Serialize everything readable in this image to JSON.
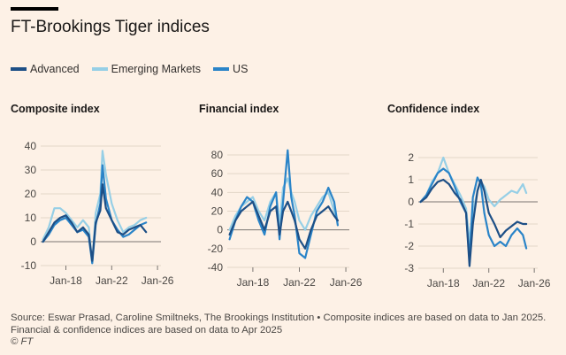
{
  "title": "FT-Brookings Tiger indices",
  "legend": [
    {
      "label": "Advanced",
      "color": "#1d4f86"
    },
    {
      "label": "Emerging Markets",
      "color": "#96cfe6"
    },
    {
      "label": "US",
      "color": "#2a84c8"
    }
  ],
  "source": "Source: Eswar Prasad, Caroline Smiltneks, The Brookings Institution • Composite indices are based on data to Jan 2025. Financial & confidence indices are based on data to Apr 2025",
  "credit": "© FT",
  "chart_data": [
    {
      "type": "line",
      "title": "Composite index",
      "xlim": [
        2015.8,
        2026.3
      ],
      "ylim": [
        -10,
        40
      ],
      "yticks": [
        -10,
        0,
        10,
        20,
        30,
        40
      ],
      "xticks": [
        {
          "value": 2018,
          "label": "Jan-18"
        },
        {
          "value": 2022,
          "label": "Jan-22"
        },
        {
          "value": 2026,
          "label": "Jan-26"
        }
      ],
      "series": [
        {
          "name": "Advanced",
          "x": [
            2016,
            2016.5,
            2017,
            2017.5,
            2018,
            2018.5,
            2019,
            2019.5,
            2020,
            2020.3,
            2020.6,
            2021,
            2021.2,
            2021.5,
            2022,
            2022.5,
            2023,
            2023.5,
            2024,
            2024.5,
            2025
          ],
          "values": [
            0,
            4,
            8,
            10,
            11,
            8,
            4,
            6,
            3,
            -8,
            8,
            13,
            24,
            14,
            9,
            4,
            3,
            5,
            6,
            7,
            4
          ]
        },
        {
          "name": "Emerging Markets",
          "x": [
            2016,
            2016.5,
            2017,
            2017.5,
            2018,
            2018.5,
            2019,
            2019.5,
            2020,
            2020.3,
            2020.6,
            2021,
            2021.2,
            2021.5,
            2022,
            2022.5,
            2023,
            2023.5,
            2024,
            2024.5,
            2025
          ],
          "values": [
            1,
            6,
            14,
            14,
            12,
            9,
            6,
            9,
            6,
            -9,
            12,
            20,
            38,
            28,
            16,
            9,
            4,
            6,
            7,
            9,
            10
          ]
        },
        {
          "name": "US",
          "x": [
            2016,
            2016.5,
            2017,
            2017.5,
            2018,
            2018.5,
            2019,
            2019.5,
            2020,
            2020.3,
            2020.6,
            2021,
            2021.2,
            2021.5,
            2022,
            2022.5,
            2023,
            2023.5,
            2024,
            2024.5,
            2025
          ],
          "values": [
            0,
            3,
            7,
            9,
            10,
            7,
            4,
            5,
            2,
            -9,
            7,
            16,
            32,
            18,
            9,
            5,
            2,
            3,
            5,
            7,
            8
          ]
        }
      ]
    },
    {
      "type": "line",
      "title": "Financial index",
      "xlim": [
        2015.8,
        2026.3
      ],
      "ylim": [
        -40,
        80
      ],
      "yticks": [
        -40,
        -20,
        0,
        20,
        40,
        60,
        80
      ],
      "xticks": [
        {
          "value": 2018,
          "label": "Jan-18"
        },
        {
          "value": 2022,
          "label": "Jan-22"
        },
        {
          "value": 2026,
          "label": "Jan-26"
        }
      ],
      "series": [
        {
          "name": "Advanced",
          "x": [
            2016,
            2016.5,
            2017,
            2017.5,
            2018,
            2018.5,
            2019,
            2019.5,
            2020,
            2020.3,
            2020.6,
            2021,
            2021.3,
            2021.6,
            2022,
            2022.5,
            2023,
            2023.5,
            2024,
            2024.5,
            2025,
            2025.3
          ],
          "values": [
            -5,
            10,
            20,
            25,
            30,
            15,
            0,
            20,
            25,
            -5,
            20,
            30,
            20,
            10,
            -10,
            -20,
            0,
            15,
            20,
            25,
            15,
            10
          ]
        },
        {
          "name": "Emerging Markets",
          "x": [
            2016,
            2016.5,
            2017,
            2017.5,
            2018,
            2018.5,
            2019,
            2019.5,
            2020,
            2020.3,
            2020.6,
            2021,
            2021.3,
            2021.6,
            2022,
            2022.5,
            2023,
            2023.5,
            2024,
            2024.5,
            2025,
            2025.3
          ],
          "values": [
            0,
            15,
            25,
            30,
            35,
            20,
            10,
            30,
            40,
            5,
            45,
            55,
            40,
            30,
            10,
            0,
            15,
            25,
            35,
            40,
            20,
            10
          ]
        },
        {
          "name": "US",
          "x": [
            2016,
            2016.5,
            2017,
            2017.5,
            2018,
            2018.5,
            2019,
            2019.5,
            2020,
            2020.3,
            2020.6,
            2021,
            2021.3,
            2021.6,
            2022,
            2022.5,
            2023,
            2023.5,
            2024,
            2024.5,
            2025,
            2025.3
          ],
          "values": [
            -10,
            10,
            25,
            35,
            30,
            10,
            -5,
            25,
            40,
            -10,
            30,
            85,
            35,
            15,
            -25,
            -30,
            -5,
            20,
            30,
            45,
            30,
            5
          ]
        }
      ]
    },
    {
      "type": "line",
      "title": "Confidence index",
      "xlim": [
        2015.8,
        2026.3
      ],
      "ylim": [
        -3,
        2
      ],
      "yticks": [
        -3,
        -2,
        -1,
        0,
        1,
        2
      ],
      "xticks": [
        {
          "value": 2018,
          "label": "Jan-18"
        },
        {
          "value": 2022,
          "label": "Jan-22"
        },
        {
          "value": 2026,
          "label": "Jan-26"
        }
      ],
      "series": [
        {
          "name": "Advanced",
          "x": [
            2016,
            2016.5,
            2017,
            2017.5,
            2018,
            2018.5,
            2019,
            2019.5,
            2020,
            2020.3,
            2020.6,
            2021,
            2021.3,
            2021.6,
            2022,
            2022.5,
            2023,
            2023.5,
            2024,
            2024.5,
            2025,
            2025.3
          ],
          "values": [
            0,
            0.2,
            0.6,
            0.9,
            1.0,
            0.8,
            0.4,
            0.1,
            -0.5,
            -2.9,
            -1.0,
            0.5,
            1.0,
            0.5,
            -0.5,
            -1.0,
            -1.6,
            -1.3,
            -1.1,
            -0.9,
            -1.0,
            -1.0
          ]
        },
        {
          "name": "Emerging Markets",
          "x": [
            2016,
            2016.5,
            2017,
            2017.5,
            2018,
            2018.5,
            2019,
            2019.5,
            2020,
            2020.3,
            2020.6,
            2021,
            2021.3,
            2021.6,
            2022,
            2022.5,
            2023,
            2023.5,
            2024,
            2024.5,
            2025,
            2025.3
          ],
          "values": [
            0,
            0.3,
            0.9,
            1.3,
            2.0,
            1.3,
            0.8,
            0.3,
            -0.3,
            -1.8,
            -0.5,
            0.5,
            0.9,
            0.7,
            0.1,
            -0.2,
            0.1,
            0.3,
            0.5,
            0.4,
            0.8,
            0.4
          ]
        },
        {
          "name": "US",
          "x": [
            2016,
            2016.5,
            2017,
            2017.5,
            2018,
            2018.5,
            2019,
            2019.5,
            2020,
            2020.3,
            2020.6,
            2021,
            2021.3,
            2021.6,
            2022,
            2022.5,
            2023,
            2023.5,
            2024,
            2024.5,
            2025,
            2025.3
          ],
          "values": [
            0,
            0.3,
            0.8,
            1.3,
            1.5,
            1.3,
            0.7,
            0.0,
            -0.5,
            -2.6,
            0.2,
            1.1,
            0.8,
            -0.5,
            -1.5,
            -2.0,
            -1.8,
            -2.0,
            -1.5,
            -1.2,
            -1.5,
            -2.1
          ]
        }
      ]
    }
  ]
}
